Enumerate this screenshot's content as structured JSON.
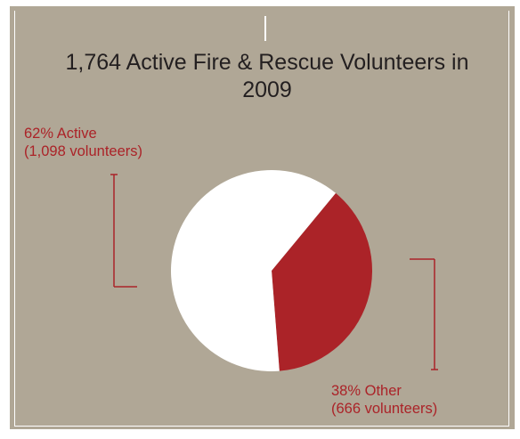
{
  "chart_data": {
    "type": "pie",
    "title": "1,764 Active Fire & Rescue Volunteers in 2009",
    "slices": [
      {
        "label": "62% Active",
        "detail": "(1,098 volunteers)",
        "percent": 62,
        "value": 1098,
        "color": "#ffffff"
      },
      {
        "label": "38% Other",
        "detail": "(666 volunteers)",
        "percent": 38,
        "value": 666,
        "color": "#ab2328"
      }
    ]
  },
  "colors": {
    "panel_background": "#b0a796",
    "accent": "#ab2328",
    "title_text": "#231f20",
    "rule": "#ffffff"
  }
}
